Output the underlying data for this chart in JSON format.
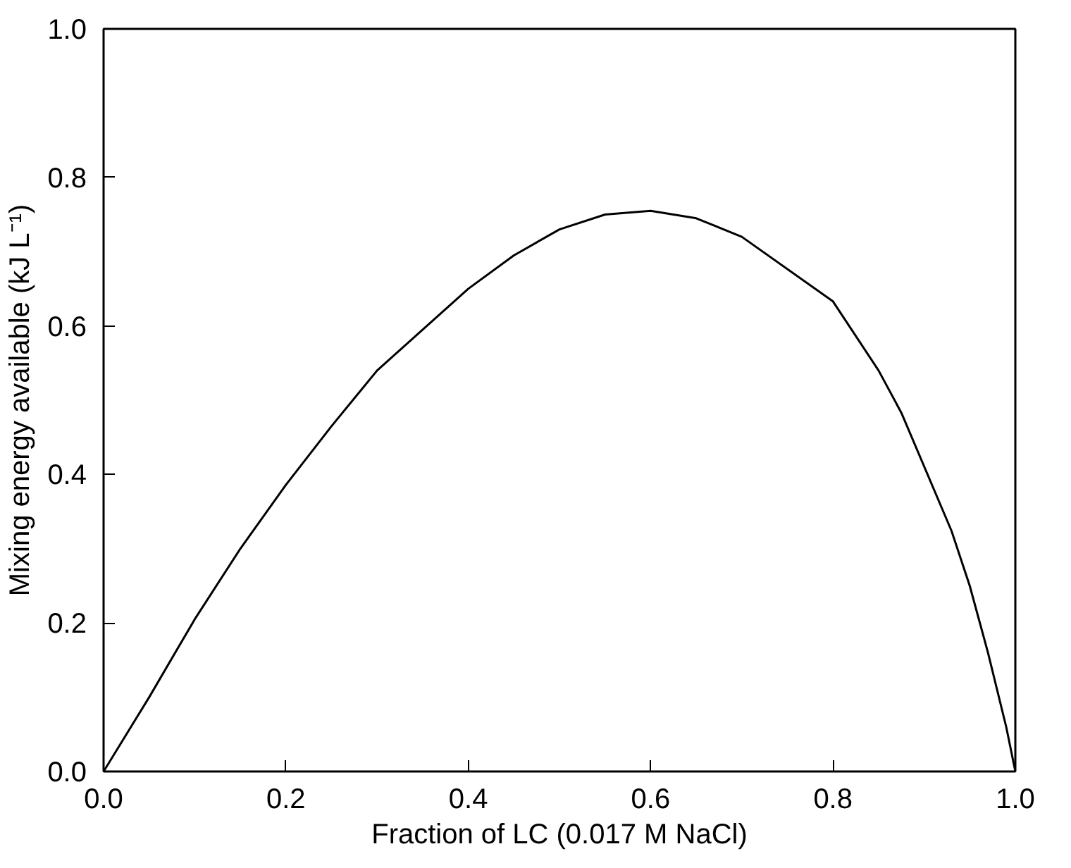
{
  "chart_data": {
    "type": "line",
    "xlabel": "Fraction of LC (0.017 M NaCl)",
    "ylabel": "Mixing energy available (kJ L⁻¹)",
    "x": [
      0,
      0.05,
      0.1,
      0.15,
      0.2,
      0.25,
      0.3,
      0.4,
      0.45,
      0.5,
      0.55,
      0.6,
      0.65,
      0.7,
      0.8,
      0.85,
      0.875,
      0.93,
      0.95,
      0.97,
      0.99,
      1.0
    ],
    "series": [
      {
        "color": "#000000",
        "values": [
          0,
          0.1,
          0.205,
          0.3,
          0.386,
          0.465,
          0.54,
          0.65,
          0.695,
          0.73,
          0.75,
          0.755,
          0.745,
          0.72,
          0.633,
          0.54,
          0.483,
          0.324,
          0.25,
          0.16,
          0.06,
          0
        ]
      }
    ],
    "xlim": [
      0,
      1
    ],
    "ylim": [
      0,
      1
    ],
    "xticks": [
      {
        "value": 0,
        "label": "0.0"
      },
      0.2,
      0.4,
      0.6,
      0.8,
      {
        "value": 1,
        "label": "1.0"
      }
    ],
    "yticks": [
      {
        "value": 0,
        "label": "0.0"
      },
      0.2,
      0.4,
      0.6,
      0.8,
      {
        "value": 1,
        "label": "1.0"
      }
    ],
    "marker": "none",
    "line_style": "solid"
  }
}
